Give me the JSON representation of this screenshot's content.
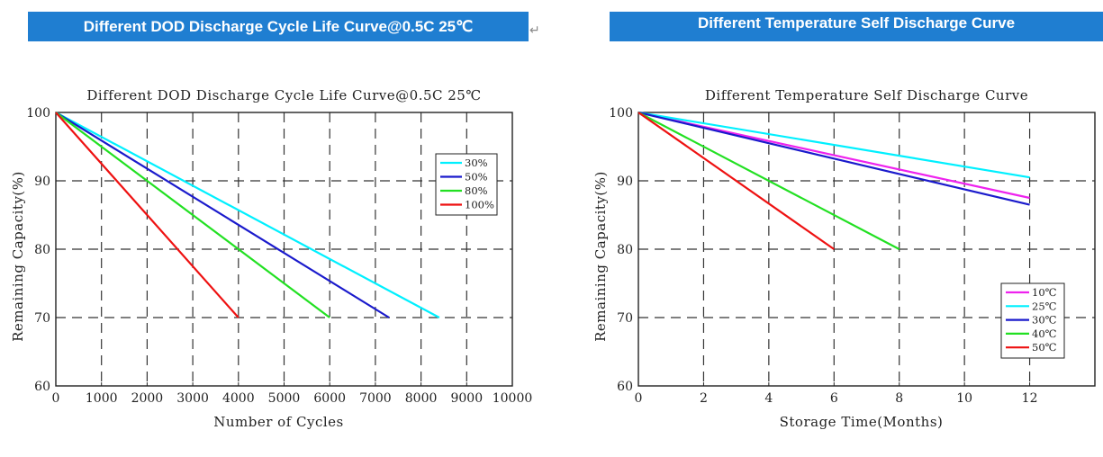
{
  "banners": {
    "left": "Different DOD Discharge Cycle Life Curve@0.5C  25℃",
    "right": "Different Temperature Self Discharge Curve"
  },
  "chart_data": [
    {
      "type": "line",
      "title": "Different DOD Discharge Cycle Life Curve@0.5C 25℃",
      "xlabel": "Number of Cycles",
      "ylabel": "Remaining Capacity(%)",
      "xlim": [
        0,
        10000
      ],
      "ylim": [
        60,
        100
      ],
      "xticks": [
        0,
        1000,
        2000,
        3000,
        4000,
        5000,
        6000,
        7000,
        8000,
        9000,
        10000
      ],
      "yticks": [
        60,
        70,
        80,
        90,
        100
      ],
      "grid": "dashed",
      "legend_position": "top-right",
      "series": [
        {
          "name": "30%",
          "color": "#00f0ff",
          "x": [
            0,
            8400
          ],
          "y": [
            100,
            70
          ]
        },
        {
          "name": "50%",
          "color": "#1a1acc",
          "x": [
            0,
            7300
          ],
          "y": [
            100,
            70
          ]
        },
        {
          "name": "80%",
          "color": "#22e022",
          "x": [
            0,
            6000
          ],
          "y": [
            100,
            70
          ]
        },
        {
          "name": "100%",
          "color": "#ee1111",
          "x": [
            0,
            4000
          ],
          "y": [
            100,
            70
          ]
        }
      ]
    },
    {
      "type": "line",
      "title": "Different Temperature Self Discharge Curve",
      "xlabel": "Storage Time(Months)",
      "ylabel": "Remaining Capacity(%)",
      "xlim": [
        0,
        14
      ],
      "ylim": [
        60,
        100
      ],
      "xticks": [
        0,
        2,
        4,
        6,
        8,
        10,
        12
      ],
      "yticks": [
        60,
        70,
        80,
        90,
        100
      ],
      "grid": "dashed",
      "legend_position": "bottom-right",
      "series": [
        {
          "name": "10℃",
          "color": "#ee22ee",
          "x": [
            0,
            12
          ],
          "y": [
            100,
            87.5
          ]
        },
        {
          "name": "25℃",
          "color": "#00f0ff",
          "x": [
            0,
            12
          ],
          "y": [
            100,
            90.5
          ]
        },
        {
          "name": "30℃",
          "color": "#1a1acc",
          "x": [
            0,
            12
          ],
          "y": [
            100,
            86.5
          ]
        },
        {
          "name": "40℃",
          "color": "#22e022",
          "x": [
            0,
            8
          ],
          "y": [
            100,
            80
          ]
        },
        {
          "name": "50℃",
          "color": "#ee1111",
          "x": [
            0,
            6
          ],
          "y": [
            100,
            80
          ]
        }
      ]
    }
  ]
}
